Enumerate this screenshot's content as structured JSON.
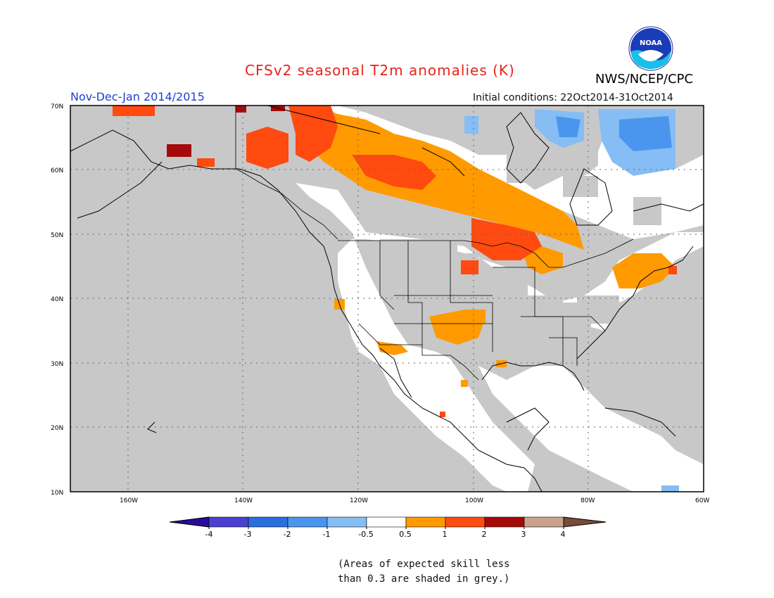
{
  "header": {
    "title": "CFSv2 seasonal T2m anomalies (K)",
    "season": "Nov-Dec-Jan 2014/2015",
    "initial_conditions": "Initial conditions: 22Oct2014-31Oct2014",
    "agency": "NWS/NCEP/CPC",
    "logo_text": "NOAA"
  },
  "map": {
    "lat_labels": [
      "70N",
      "60N",
      "50N",
      "40N",
      "30N",
      "20N",
      "10N"
    ],
    "lon_labels": [
      "160W",
      "140W",
      "120W",
      "100W",
      "80W",
      "60W"
    ],
    "background_color": "#c8c8c8"
  },
  "legend": {
    "ticks": [
      "-4",
      "-3",
      "-2",
      "-1",
      "-0.5",
      "0.5",
      "1",
      "2",
      "3",
      "4"
    ],
    "colors": [
      "#2a0a9a",
      "#4b3fd2",
      "#2a6ee0",
      "#4a96ee",
      "#86bdf5",
      "#ffffff",
      "#ff9a00",
      "#ff4a10",
      "#a50a0a",
      "#c9a28e",
      "#7a4a3a"
    ]
  },
  "note": {
    "line1": "(Areas of expected skill less",
    "line2": "than 0.3 are shaded in grey.)"
  }
}
